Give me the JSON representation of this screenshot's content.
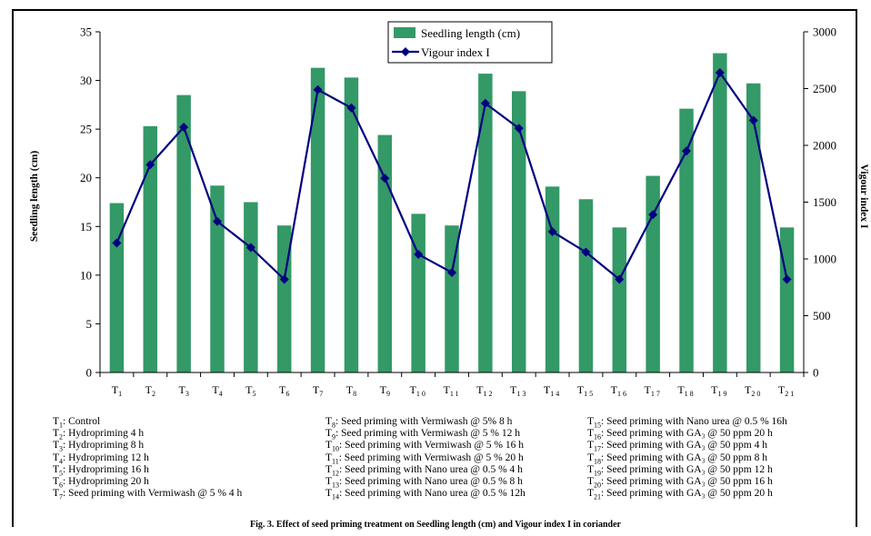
{
  "chart_data": {
    "type": "bar",
    "categories": [
      "T1",
      "T2",
      "T3",
      "T4",
      "T5",
      "T6",
      "T7",
      "T8",
      "T9",
      "T10",
      "T11",
      "T12",
      "T13",
      "T14",
      "T15",
      "T16",
      "T17",
      "T18",
      "T19",
      "T20",
      "T21"
    ],
    "category_labels": [
      {
        "base": "T",
        "sub": "1"
      },
      {
        "base": "T",
        "sub": "2"
      },
      {
        "base": "T",
        "sub": "3"
      },
      {
        "base": "T",
        "sub": "4"
      },
      {
        "base": "T",
        "sub": "5"
      },
      {
        "base": "T",
        "sub": "6"
      },
      {
        "base": "T",
        "sub": "7"
      },
      {
        "base": "T",
        "sub": "8"
      },
      {
        "base": "T",
        "sub": "9"
      },
      {
        "base": "T",
        "sub": "10"
      },
      {
        "base": "T",
        "sub": "11"
      },
      {
        "base": "T",
        "sub": "12"
      },
      {
        "base": "T",
        "sub": "13"
      },
      {
        "base": "T",
        "sub": "14"
      },
      {
        "base": "T",
        "sub": "15"
      },
      {
        "base": "T",
        "sub": "16"
      },
      {
        "base": "T",
        "sub": "17"
      },
      {
        "base": "T",
        "sub": "18"
      },
      {
        "base": "T",
        "sub": "19"
      },
      {
        "base": "T",
        "sub": "20"
      },
      {
        "base": "T",
        "sub": "21"
      }
    ],
    "series": [
      {
        "name": "Seedling length (cm)",
        "kind": "bar",
        "axis": "left",
        "color": "#339966",
        "values": [
          17.4,
          25.3,
          28.5,
          19.2,
          17.5,
          15.1,
          31.3,
          30.3,
          24.4,
          16.3,
          15.1,
          30.7,
          28.9,
          19.1,
          17.8,
          14.9,
          20.2,
          27.1,
          32.8,
          29.7,
          14.9
        ]
      },
      {
        "name": "Vigour index I",
        "kind": "line",
        "axis": "right",
        "color": "#000080",
        "values": [
          1140,
          1830,
          2160,
          1330,
          1100,
          820,
          2490,
          2330,
          1710,
          1040,
          880,
          2370,
          2150,
          1240,
          1060,
          820,
          1390,
          1950,
          2640,
          2220,
          820
        ]
      }
    ],
    "ylabel_left": "Seedling length (cm)",
    "ylabel_right": "Vigour index I",
    "ylim_left": [
      0,
      35
    ],
    "yticks_left": [
      0,
      5,
      10,
      15,
      20,
      25,
      30,
      35
    ],
    "ylim_right": [
      0,
      3000
    ],
    "yticks_right": [
      0,
      500,
      1000,
      1500,
      2000,
      2500,
      3000
    ],
    "legend_placement": "top-center",
    "grid": false
  },
  "treatments": {
    "col1": [
      {
        "id": "T",
        "sub": "1",
        "text": ": Control"
      },
      {
        "id": "T",
        "sub": "2",
        "text": ": Hydropriming 4 h"
      },
      {
        "id": "T",
        "sub": "3",
        "text": ": Hydropriming 8 h"
      },
      {
        "id": "T",
        "sub": "4",
        "text": ": Hydropriming 12 h"
      },
      {
        "id": "T",
        "sub": "5",
        "text": ": Hydropriming 16 h"
      },
      {
        "id": "T",
        "sub": "6",
        "text": ": Hydropriming 20 h"
      },
      {
        "id": "T",
        "sub": "7",
        "text": ": Seed priming with Vermiwash @ 5 % 4 h"
      }
    ],
    "col2": [
      {
        "id": "T",
        "sub": "8",
        "text": ": Seed priming with Vermiwash @ 5% 8 h"
      },
      {
        "id": "T",
        "sub": "9",
        "text": ": Seed priming with Vermiwash @ 5 % 12 h"
      },
      {
        "id": "T",
        "sub": "10",
        "text": ": Seed priming with Vermiwash @ 5 % 16 h"
      },
      {
        "id": "T",
        "sub": "11",
        "text": ": Seed priming with Vermiwash @ 5 % 20 h"
      },
      {
        "id": "T",
        "sub": "12",
        "text": ": Seed priming with Nano urea @ 0.5 % 4 h"
      },
      {
        "id": "T",
        "sub": "13",
        "text": ": Seed priming with Nano urea @ 0.5 % 8 h"
      },
      {
        "id": "T",
        "sub": "14",
        "text": ": Seed priming with Nano urea @ 0.5 % 12h"
      }
    ],
    "col3": [
      {
        "id": "T",
        "sub": "15",
        "text": ": Seed priming with Nano urea @ 0.5 % 16h"
      },
      {
        "id": "T",
        "sub": "16",
        "text": ": Seed priming with GA₃ @ 50 ppm 20 h"
      },
      {
        "id": "T",
        "sub": "17",
        "text": ": Seed priming with GA₃ @ 50 ppm 4 h"
      },
      {
        "id": "T",
        "sub": "18",
        "text": ": Seed priming with GA₃ @ 50 ppm 8 h"
      },
      {
        "id": "T",
        "sub": "19",
        "text": ": Seed priming with GA₃ @ 50 ppm 12 h"
      },
      {
        "id": "T",
        "sub": "20",
        "text": ": Seed priming with GA₃ @ 50 ppm 16 h"
      },
      {
        "id": "T",
        "sub": "21",
        "text": ": Seed priming with GA₃ @ 50 ppm 20 h"
      }
    ]
  },
  "caption": "Fig. 3. Effect of seed priming treatment on Seedling length (cm) and Vigour index I in coriander"
}
